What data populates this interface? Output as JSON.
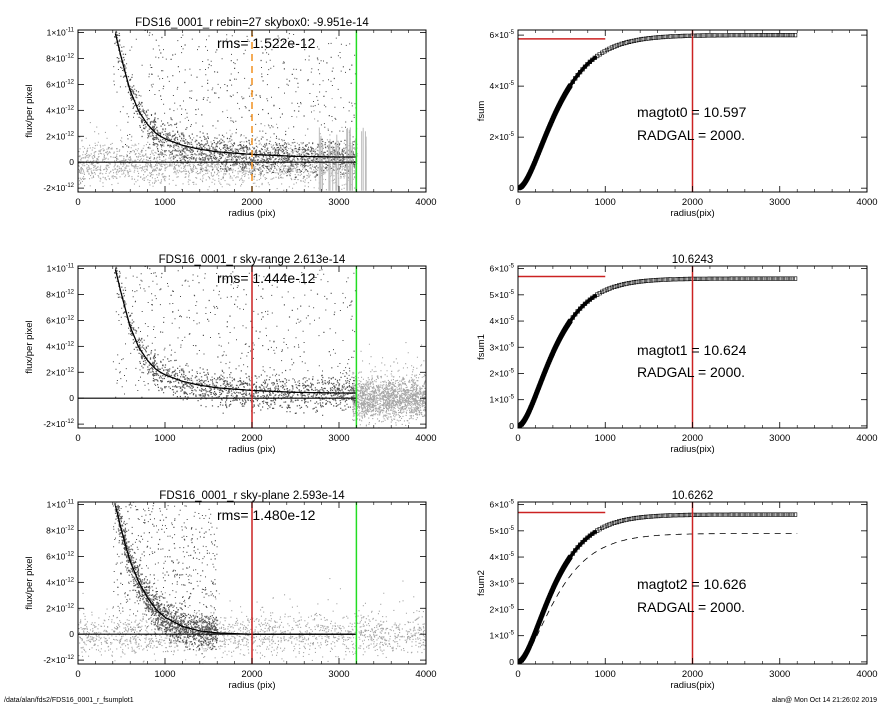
{
  "footer": {
    "left": "/data/alan/fds2/FDS16_0001_r_fsumplot1",
    "right": "alan@  Mon Oct 14 21:26:02 2019"
  },
  "colors": {
    "scatter_dark": "#555555",
    "scatter_light": "#a6a6a6",
    "profile": "#000000",
    "red": "#cc2222",
    "green": "#22dd22",
    "orange": "#f09020"
  },
  "chart_data": [
    {
      "id": "flux-top",
      "type": "scatter",
      "title": "FDS16_0001_r rebin=27    skybox0: -9.951e-14",
      "annotations": [
        "rms= 1.522e-12"
      ],
      "xlabel": "radius (pix)",
      "ylabel": "flux/per pixel",
      "xlim": [
        0,
        4000
      ],
      "ylim": [
        -2.3e-12,
        1.02e-11
      ],
      "x_ticks": [
        "0",
        "1000",
        "2000",
        "3000",
        "4000"
      ],
      "y_ticks": [
        {
          "mant": "-2×10",
          "exp": "-12",
          "value": -2e-12
        },
        {
          "mant": "0",
          "exp": "",
          "value": 0
        },
        {
          "mant": "2×10",
          "exp": "-12",
          "value": 2e-12
        },
        {
          "mant": "4×10",
          "exp": "-12",
          "value": 4e-12
        },
        {
          "mant": "6×10",
          "exp": "-12",
          "value": 6e-12
        },
        {
          "mant": "8×10",
          "exp": "-12",
          "value": 8e-12
        },
        {
          "mant": "1×10",
          "exp": "-11",
          "value": 1e-11
        }
      ],
      "vlines": [
        {
          "x": 2000,
          "color": "orange",
          "dashed": true
        },
        {
          "x": 3200,
          "color": "green",
          "dashed": false
        }
      ],
      "scatter": {
        "dark_until": 3200,
        "light_from": 0,
        "sky_level": -1e-13
      },
      "profile": {
        "x": [
          420,
          500,
          600,
          700,
          800,
          900,
          1000,
          1200,
          1400,
          1600,
          2000,
          2500,
          3000,
          3200
        ],
        "y": [
          1.02e-11,
          8e-12,
          5.5e-12,
          3.9e-12,
          2.9e-12,
          2.2e-12,
          1.8e-12,
          1.3e-12,
          1e-12,
          8e-13,
          6e-13,
          4.5e-13,
          4e-13,
          4e-13
        ]
      },
      "zero_line": {
        "x": [
          0,
          3200
        ],
        "y": 0
      }
    },
    {
      "id": "flux-mid",
      "type": "scatter",
      "title": "FDS16_0001_r sky-range  2.613e-14",
      "annotations": [
        "rms= 1.444e-12"
      ],
      "xlabel": "radius (pix)",
      "ylabel": "flux/per pixel",
      "xlim": [
        0,
        4000
      ],
      "ylim": [
        -2.3e-12,
        1.02e-11
      ],
      "x_ticks": [
        "0",
        "1000",
        "2000",
        "3000",
        "4000"
      ],
      "y_ticks": [
        {
          "mant": "-2×10",
          "exp": "-12",
          "value": -2e-12
        },
        {
          "mant": "0",
          "exp": "",
          "value": 0
        },
        {
          "mant": "2×10",
          "exp": "-12",
          "value": 2e-12
        },
        {
          "mant": "4×10",
          "exp": "-12",
          "value": 4e-12
        },
        {
          "mant": "6×10",
          "exp": "-12",
          "value": 6e-12
        },
        {
          "mant": "8×10",
          "exp": "-12",
          "value": 8e-12
        },
        {
          "mant": "1×10",
          "exp": "-11",
          "value": 1e-11
        }
      ],
      "vlines": [
        {
          "x": 2000,
          "color": "red",
          "dashed": false
        },
        {
          "x": 3200,
          "color": "green",
          "dashed": false
        }
      ],
      "scatter": {
        "dark_until": 3200,
        "light_from": 3150,
        "sky_level": 0
      },
      "profile": {
        "x": [
          420,
          500,
          600,
          700,
          800,
          900,
          1000,
          1200,
          1400,
          1600,
          2000,
          2500,
          3000,
          3200
        ],
        "y": [
          1.02e-11,
          8e-12,
          5.5e-12,
          3.9e-12,
          2.9e-12,
          2.2e-12,
          1.8e-12,
          1.3e-12,
          1e-12,
          8e-13,
          6e-13,
          4.5e-13,
          4e-13,
          4e-13
        ]
      },
      "zero_line": {
        "x": [
          0,
          3200
        ],
        "y": 0
      }
    },
    {
      "id": "flux-bot",
      "type": "scatter",
      "title": "FDS16_0001_r sky-plane  2.593e-14",
      "annotations": [
        "rms= 1.480e-12"
      ],
      "xlabel": "radius (pix)",
      "ylabel": "flux/per pixel",
      "xlim": [
        0,
        4000
      ],
      "ylim": [
        -2.3e-12,
        1.02e-11
      ],
      "x_ticks": [
        "0",
        "1000",
        "2000",
        "3000",
        "4000"
      ],
      "y_ticks": [
        {
          "mant": "-2×10",
          "exp": "-12",
          "value": -2e-12
        },
        {
          "mant": "0",
          "exp": "",
          "value": 0
        },
        {
          "mant": "2×10",
          "exp": "-12",
          "value": 2e-12
        },
        {
          "mant": "4×10",
          "exp": "-12",
          "value": 4e-12
        },
        {
          "mant": "6×10",
          "exp": "-12",
          "value": 6e-12
        },
        {
          "mant": "8×10",
          "exp": "-12",
          "value": 8e-12
        },
        {
          "mant": "1×10",
          "exp": "-11",
          "value": 1e-11
        }
      ],
      "vlines": [
        {
          "x": 2000,
          "color": "red",
          "dashed": false
        },
        {
          "x": 3200,
          "color": "green",
          "dashed": false
        }
      ],
      "scatter": {
        "dark_until": 1600,
        "light_from": 0,
        "sky_level": 0
      },
      "profile": {
        "x": [
          420,
          500,
          600,
          700,
          800,
          900,
          1000,
          1200,
          1400,
          1600,
          1800,
          2000,
          3200
        ],
        "y": [
          1.02e-11,
          8e-12,
          5.6e-12,
          4e-12,
          2.8e-12,
          1.9e-12,
          1.3e-12,
          6e-13,
          2.5e-13,
          1e-13,
          4e-14,
          0,
          0
        ]
      },
      "zero_line": {
        "x": [
          0,
          3200
        ],
        "y": 0
      }
    },
    {
      "id": "fsum-top",
      "type": "line",
      "title": "",
      "annotations": [
        "magtot0 =  10.597",
        "RADGAL =   2000."
      ],
      "xlabel": "radius(pix)",
      "ylabel": "fsum",
      "xlim": [
        0,
        4000
      ],
      "ylim": [
        -1.5e-06,
        6.2e-05
      ],
      "x_ticks": [
        "0",
        "1000",
        "2000",
        "3000",
        "4000"
      ],
      "y_ticks": [
        {
          "mant": "0",
          "exp": "",
          "value": 0
        },
        {
          "mant": "2×10",
          "exp": "-5",
          "value": 2e-05
        },
        {
          "mant": "4×10",
          "exp": "-5",
          "value": 4e-05
        },
        {
          "mant": "6×10",
          "exp": "-5",
          "value": 6e-05
        }
      ],
      "vlines": [
        {
          "x": 2000,
          "color": "red",
          "dashed": false
        }
      ],
      "hline": {
        "x": [
          0,
          1000
        ],
        "y": 5.85e-05,
        "color": "red"
      },
      "curve": {
        "asymptote": 6e-05,
        "scale": 260,
        "xmax": 3200
      },
      "dashed_curve": null
    },
    {
      "id": "fsum-mid",
      "type": "line",
      "title": "10.6243",
      "annotations": [
        "magtot1 =  10.624",
        "RADGAL =   2000."
      ],
      "xlabel": "radius(pix)",
      "ylabel": "fsum1",
      "xlim": [
        0,
        4000
      ],
      "ylim": [
        -8e-07,
        6.1e-05
      ],
      "x_ticks": [
        "0",
        "1000",
        "2000",
        "3000",
        "4000"
      ],
      "y_ticks": [
        {
          "mant": "0",
          "exp": "",
          "value": 0
        },
        {
          "mant": "1×10",
          "exp": "-5",
          "value": 1e-05
        },
        {
          "mant": "2×10",
          "exp": "-5",
          "value": 2e-05
        },
        {
          "mant": "3×10",
          "exp": "-5",
          "value": 3e-05
        },
        {
          "mant": "4×10",
          "exp": "-5",
          "value": 4e-05
        },
        {
          "mant": "5×10",
          "exp": "-5",
          "value": 5e-05
        },
        {
          "mant": "6×10",
          "exp": "-5",
          "value": 6e-05
        }
      ],
      "vlines": [
        {
          "x": 2000,
          "color": "red",
          "dashed": false
        }
      ],
      "hline": {
        "x": [
          0,
          1000
        ],
        "y": 5.7e-05,
        "color": "red"
      },
      "curve": {
        "asymptote": 5.62e-05,
        "scale": 240,
        "xmax": 3200
      },
      "dashed_curve": null
    },
    {
      "id": "fsum-bot",
      "type": "line",
      "title": "10.6262",
      "annotations": [
        "magtot2 =  10.626",
        "RADGAL =   2000."
      ],
      "xlabel": "radius(pix)",
      "ylabel": "fsum2",
      "xlim": [
        0,
        4000
      ],
      "ylim": [
        -8e-07,
        6.1e-05
      ],
      "x_ticks": [
        "0",
        "1000",
        "2000",
        "3000",
        "4000"
      ],
      "y_ticks": [
        {
          "mant": "0",
          "exp": "",
          "value": 0
        },
        {
          "mant": "1×10",
          "exp": "-5",
          "value": 1e-05
        },
        {
          "mant": "2×10",
          "exp": "-5",
          "value": 2e-05
        },
        {
          "mant": "3×10",
          "exp": "-5",
          "value": 3e-05
        },
        {
          "mant": "4×10",
          "exp": "-5",
          "value": 4e-05
        },
        {
          "mant": "5×10",
          "exp": "-5",
          "value": 5e-05
        },
        {
          "mant": "6×10",
          "exp": "-5",
          "value": 6e-05
        }
      ],
      "vlines": [
        {
          "x": 2000,
          "color": "red",
          "dashed": false
        }
      ],
      "hline": {
        "x": [
          0,
          1000
        ],
        "y": 5.7e-05,
        "color": "red"
      },
      "curve": {
        "asymptote": 5.62e-05,
        "scale": 240,
        "xmax": 3200
      },
      "dashed_curve": {
        "asymptote": 4.9e-05,
        "scale": 260,
        "xmax": 3200
      }
    }
  ]
}
